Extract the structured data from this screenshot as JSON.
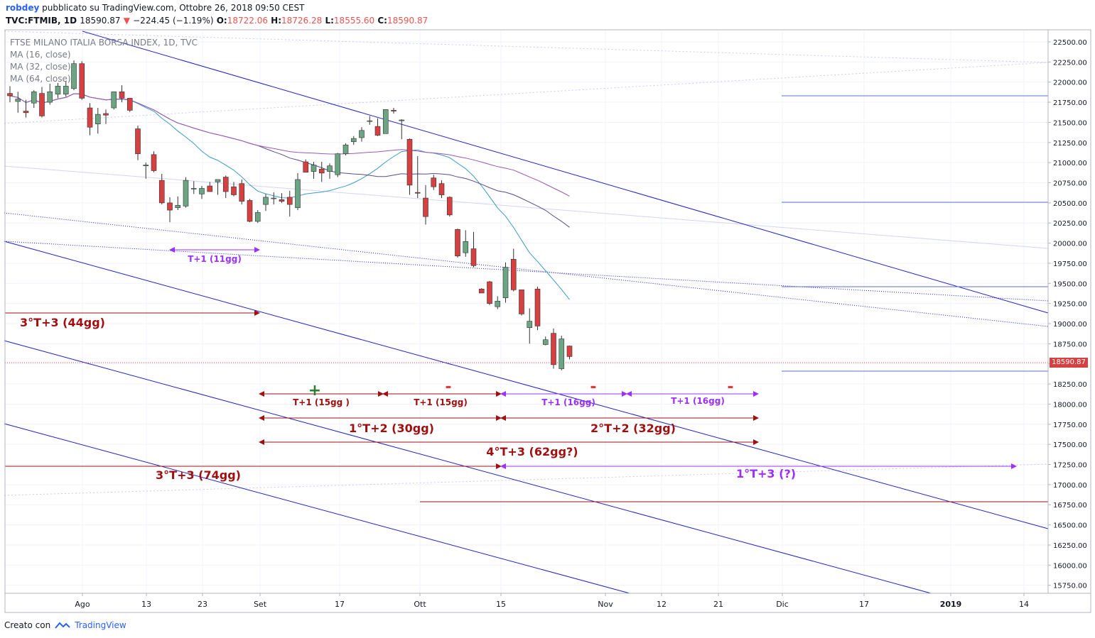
{
  "header": {
    "user": "robdey",
    "published": "pubblicato su TradingView.com, Ottobre 26, 2018 09:50 CEST",
    "symbol": "TVC:FTMIB, 1D",
    "last": "18590.87",
    "change": "−224.45 (−1.19%)",
    "o_label": "O:",
    "o": "18722.06",
    "h_label": "H:",
    "h": "18726.28",
    "l_label": "L:",
    "l": "18555.60",
    "c_label": "C:",
    "c": "18590.87"
  },
  "legend": {
    "title": "FTSE MILANO ITALIA BORSA INDEX, 1D, TVC",
    "ma1": "MA (16, close)",
    "ma2": "MA (32, close)",
    "ma3": "MA (64, close)"
  },
  "footer": {
    "created": "Creato con",
    "brand": "TradingView"
  },
  "colors": {
    "up": "#6ba583",
    "down": "#d64040",
    "ma16": "#3b9cc4",
    "ma32": "#5c4b8a",
    "ma64": "#9b59b6",
    "channel": "#1f1fd6",
    "annot_red": "#a01010",
    "annot_purple": "#9b30ff"
  },
  "chart_data": {
    "type": "candlestick",
    "ylim": [
      15650,
      22650
    ],
    "yticks": [
      "22500.00",
      "22250.00",
      "22000.00",
      "21750.00",
      "21500.00",
      "21250.00",
      "21000.00",
      "20750.00",
      "20500.00",
      "20250.00",
      "20000.00",
      "19750.00",
      "19500.00",
      "19250.00",
      "19000.00",
      "18750.00",
      "18500.00",
      "18250.00",
      "18000.00",
      "17750.00",
      "17500.00",
      "17250.00",
      "17000.00",
      "16750.00",
      "16500.00",
      "16250.00",
      "16000.00",
      "15750.00"
    ],
    "xticks": [
      "Ago",
      "13",
      "23",
      "Set",
      "17",
      "Ott",
      "15",
      "Nov",
      "12",
      "21",
      "Dic",
      "17",
      "2019",
      "14"
    ],
    "last_price": "18590.87",
    "candles": [
      {
        "o": 21860,
        "h": 21950,
        "l": 21750,
        "c": 21830
      },
      {
        "o": 21760,
        "h": 21880,
        "l": 21620,
        "c": 21790
      },
      {
        "o": 21640,
        "h": 21780,
        "l": 21560,
        "c": 21620
      },
      {
        "o": 21740,
        "h": 21900,
        "l": 21680,
        "c": 21880
      },
      {
        "o": 21860,
        "h": 21940,
        "l": 21560,
        "c": 21580
      },
      {
        "o": 21750,
        "h": 21980,
        "l": 21720,
        "c": 21880
      },
      {
        "o": 21850,
        "h": 21990,
        "l": 21800,
        "c": 21950
      },
      {
        "o": 21850,
        "h": 22010,
        "l": 21820,
        "c": 21950
      },
      {
        "o": 21920,
        "h": 22270,
        "l": 21900,
        "c": 22230
      },
      {
        "o": 22230,
        "h": 22260,
        "l": 21780,
        "c": 21800
      },
      {
        "o": 21680,
        "h": 21740,
        "l": 21340,
        "c": 21440
      },
      {
        "o": 21480,
        "h": 21680,
        "l": 21360,
        "c": 21600
      },
      {
        "o": 21610,
        "h": 21660,
        "l": 21480,
        "c": 21590
      },
      {
        "o": 21680,
        "h": 21880,
        "l": 21660,
        "c": 21880
      },
      {
        "o": 21880,
        "h": 21960,
        "l": 21750,
        "c": 21800
      },
      {
        "o": 21800,
        "h": 21800,
        "l": 21630,
        "c": 21650
      },
      {
        "o": 21420,
        "h": 21460,
        "l": 21030,
        "c": 21110
      },
      {
        "o": 20960,
        "h": 21000,
        "l": 20800,
        "c": 20970
      },
      {
        "o": 21100,
        "h": 21140,
        "l": 20880,
        "c": 20900
      },
      {
        "o": 20780,
        "h": 20860,
        "l": 20480,
        "c": 20500
      },
      {
        "o": 20500,
        "h": 20570,
        "l": 20260,
        "c": 20410
      },
      {
        "o": 20440,
        "h": 20580,
        "l": 20410,
        "c": 20470
      },
      {
        "o": 20460,
        "h": 20820,
        "l": 20440,
        "c": 20780
      },
      {
        "o": 20680,
        "h": 20770,
        "l": 20610,
        "c": 20680
      },
      {
        "o": 20610,
        "h": 20710,
        "l": 20550,
        "c": 20680
      },
      {
        "o": 20710,
        "h": 20760,
        "l": 20640,
        "c": 20640
      },
      {
        "o": 20760,
        "h": 20770,
        "l": 20600,
        "c": 20790
      },
      {
        "o": 20820,
        "h": 20840,
        "l": 20560,
        "c": 20640
      },
      {
        "o": 20700,
        "h": 20760,
        "l": 20580,
        "c": 20600
      },
      {
        "o": 20740,
        "h": 20790,
        "l": 20480,
        "c": 20520
      },
      {
        "o": 20530,
        "h": 20550,
        "l": 20260,
        "c": 20270
      },
      {
        "o": 20270,
        "h": 20410,
        "l": 20250,
        "c": 20380
      },
      {
        "o": 20480,
        "h": 20610,
        "l": 20400,
        "c": 20570
      },
      {
        "o": 20560,
        "h": 20630,
        "l": 20480,
        "c": 20560
      },
      {
        "o": 20540,
        "h": 20620,
        "l": 20500,
        "c": 20520
      },
      {
        "o": 20570,
        "h": 20650,
        "l": 20330,
        "c": 20480
      },
      {
        "o": 20440,
        "h": 20870,
        "l": 20410,
        "c": 20790
      },
      {
        "o": 21010,
        "h": 21040,
        "l": 20890,
        "c": 20880
      },
      {
        "o": 20890,
        "h": 21010,
        "l": 20800,
        "c": 20970
      },
      {
        "o": 20920,
        "h": 21010,
        "l": 20760,
        "c": 20870
      },
      {
        "o": 20890,
        "h": 20990,
        "l": 20800,
        "c": 20960
      },
      {
        "o": 20850,
        "h": 21120,
        "l": 20820,
        "c": 21110
      },
      {
        "o": 21110,
        "h": 21240,
        "l": 21090,
        "c": 21220
      },
      {
        "o": 21260,
        "h": 21330,
        "l": 21220,
        "c": 21300
      },
      {
        "o": 21310,
        "h": 21440,
        "l": 21260,
        "c": 21400
      },
      {
        "o": 21520,
        "h": 21580,
        "l": 21470,
        "c": 21520
      },
      {
        "o": 21450,
        "h": 21550,
        "l": 21330,
        "c": 21340
      },
      {
        "o": 21360,
        "h": 21660,
        "l": 21360,
        "c": 21660
      },
      {
        "o": 21650,
        "h": 21680,
        "l": 21610,
        "c": 21640
      },
      {
        "o": 21520,
        "h": 21540,
        "l": 21290,
        "c": 21530
      },
      {
        "o": 21290,
        "h": 21300,
        "l": 20600,
        "c": 20720
      },
      {
        "o": 20630,
        "h": 21080,
        "l": 20560,
        "c": 20620
      },
      {
        "o": 20560,
        "h": 20720,
        "l": 20230,
        "c": 20330
      },
      {
        "o": 20810,
        "h": 20850,
        "l": 20660,
        "c": 20700
      },
      {
        "o": 20740,
        "h": 20780,
        "l": 20560,
        "c": 20600
      },
      {
        "o": 20570,
        "h": 20580,
        "l": 20330,
        "c": 20350
      },
      {
        "o": 20170,
        "h": 20180,
        "l": 19820,
        "c": 19840
      },
      {
        "o": 19880,
        "h": 20160,
        "l": 19830,
        "c": 20020
      },
      {
        "o": 19930,
        "h": 20140,
        "l": 19700,
        "c": 19720
      },
      {
        "o": 19430,
        "h": 19440,
        "l": 19390,
        "c": 19380
      },
      {
        "o": 19520,
        "h": 19530,
        "l": 19230,
        "c": 19250
      },
      {
        "o": 19210,
        "h": 19340,
        "l": 19180,
        "c": 19280
      },
      {
        "o": 19320,
        "h": 19760,
        "l": 19260,
        "c": 19700
      },
      {
        "o": 19800,
        "h": 19930,
        "l": 19400,
        "c": 19420
      },
      {
        "o": 19420,
        "h": 19420,
        "l": 19100,
        "c": 19120
      },
      {
        "o": 18950,
        "h": 19190,
        "l": 18750,
        "c": 19030
      },
      {
        "o": 19430,
        "h": 19460,
        "l": 18920,
        "c": 18970
      },
      {
        "o": 18740,
        "h": 18840,
        "l": 18730,
        "c": 18800
      },
      {
        "o": 18880,
        "h": 18940,
        "l": 18440,
        "c": 18490
      },
      {
        "o": 18440,
        "h": 18850,
        "l": 18420,
        "c": 18810
      },
      {
        "o": 18722.06,
        "h": 18726.28,
        "l": 18555.6,
        "c": 18590.87
      }
    ],
    "annotations": {
      "a1": "T+1 (11gg)",
      "a2": "3°T+3 (44gg)",
      "a3": "T+1 (15gg )",
      "a4": "T+1 (15gg)",
      "a5": "T+1 (16gg)",
      "a6": "T+1 (16gg)",
      "a7": "1°T+2 (30gg)",
      "a8": "2°T+2 (32gg)",
      "a9": "4°T+3 (62gg?)",
      "a10": "3°T+3 (74gg)",
      "a11": "1°T+3 (?)",
      "plus": "+",
      "minus": "-"
    }
  }
}
